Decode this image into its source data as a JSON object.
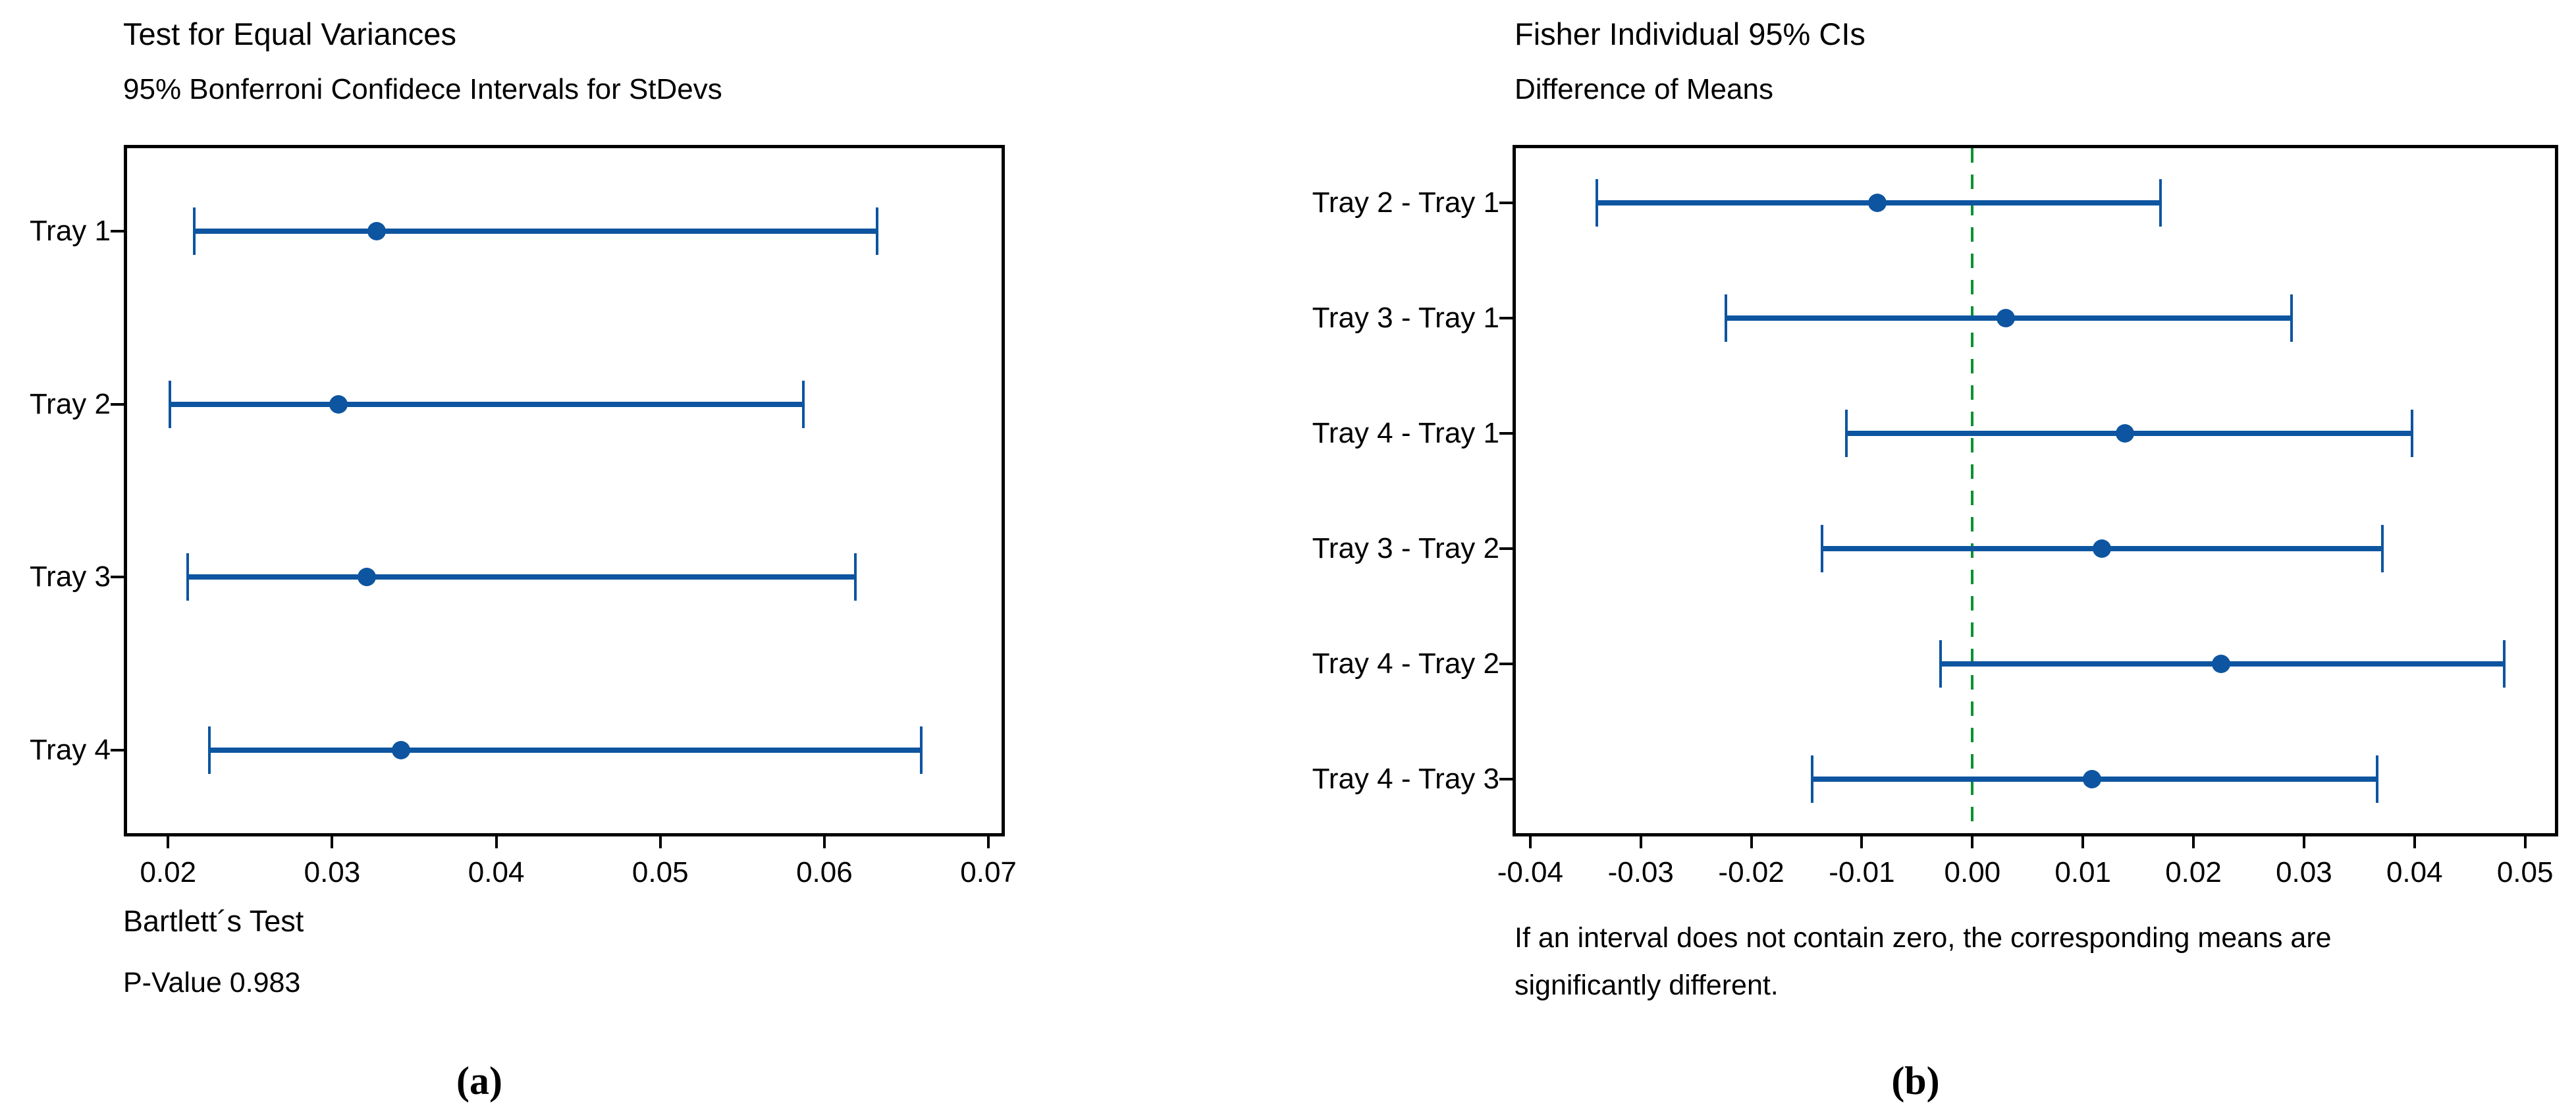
{
  "chart_data": [
    {
      "type": "interval",
      "panel": "a",
      "title": "Test for Equal Variances",
      "subtitle": "95% Bonferroni Confidece Intervals for StDevs",
      "caption": "(a)",
      "categories": [
        "Tray 1",
        "Tray 2",
        "Tray 3",
        "Tray 4"
      ],
      "intervals": [
        {
          "category": "Tray 1",
          "low": 0.0216,
          "mid": 0.0327,
          "high": 0.0632
        },
        {
          "category": "Tray 2",
          "low": 0.0201,
          "mid": 0.0304,
          "high": 0.0587
        },
        {
          "category": "Tray 3",
          "low": 0.0212,
          "mid": 0.0321,
          "high": 0.0619
        },
        {
          "category": "Tray 4",
          "low": 0.0225,
          "mid": 0.0342,
          "high": 0.0659
        }
      ],
      "xlim": [
        0.0173,
        0.071
      ],
      "xticks": [
        0.02,
        0.03,
        0.04,
        0.05,
        0.06,
        0.07
      ],
      "xtick_labels": [
        "0.02",
        "0.03",
        "0.04",
        "0.05",
        "0.06",
        "0.07"
      ],
      "grid": false,
      "legend": null,
      "interval_color": "#0D55A0",
      "footnote_lines": [
        "Bartlett´s Test",
        "P-Value 0.983"
      ]
    },
    {
      "type": "interval",
      "panel": "b",
      "title": "Fisher Individual 95% CIs",
      "subtitle": "Difference of Means",
      "caption": "(b)",
      "categories": [
        "Tray 2 - Tray 1",
        "Tray 3 - Tray 1",
        "Tray 4 - Tray 1",
        "Tray 3 - Tray 2",
        "Tray 4 - Tray 2",
        "Tray 4 - Tray 3"
      ],
      "intervals": [
        {
          "category": "Tray 2 - Tray 1",
          "low": -0.034,
          "mid": -0.0086,
          "high": 0.017
        },
        {
          "category": "Tray 3 - Tray 1",
          "low": -0.0223,
          "mid": 0.003,
          "high": 0.0289
        },
        {
          "category": "Tray 4 - Tray 1",
          "low": -0.0114,
          "mid": 0.0138,
          "high": 0.0398
        },
        {
          "category": "Tray 3 - Tray 2",
          "low": -0.0136,
          "mid": 0.0117,
          "high": 0.0371
        },
        {
          "category": "Tray 4 - Tray 2",
          "low": -0.0029,
          "mid": 0.0225,
          "high": 0.0481
        },
        {
          "category": "Tray 4 - Tray 3",
          "low": -0.0145,
          "mid": 0.0108,
          "high": 0.0366
        }
      ],
      "xlim": [
        -0.0416,
        0.053
      ],
      "xticks": [
        -0.04,
        -0.03,
        -0.02,
        -0.01,
        0.0,
        0.01,
        0.02,
        0.03,
        0.04,
        0.05
      ],
      "xtick_labels": [
        "-0.04",
        "-0.03",
        "-0.02",
        "-0.01",
        "0.00",
        "0.01",
        "0.02",
        "0.03",
        "0.04",
        "0.05"
      ],
      "grid": false,
      "legend": null,
      "zero_line": {
        "x": 0,
        "color": "#0A9132",
        "style": "dashed"
      },
      "interval_color": "#0D55A0",
      "footnote_lines": [
        "If an interval does not contain zero, the corresponding means are",
        "significantly different."
      ]
    }
  ]
}
